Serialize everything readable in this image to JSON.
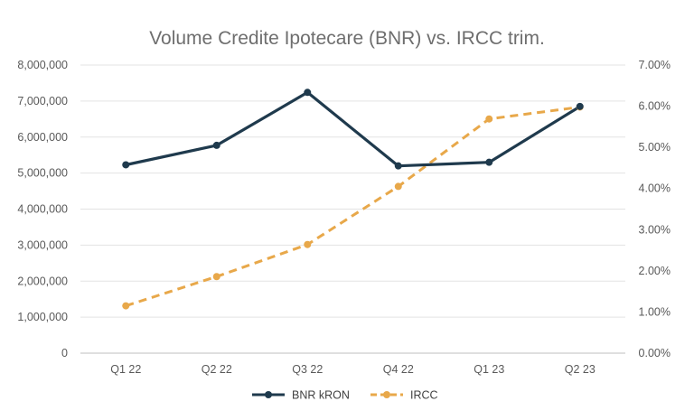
{
  "chart_data": {
    "type": "line",
    "title": "Volume Credite Ipotecare (BNR) vs. IRCC trim.",
    "categories": [
      "Q1 22",
      "Q2 22",
      "Q3 22",
      "Q4 22",
      "Q1 23",
      "Q2 23"
    ],
    "y_left": {
      "ylim": [
        0,
        8000000
      ],
      "ticks": [
        0,
        1000000,
        2000000,
        3000000,
        4000000,
        5000000,
        6000000,
        7000000,
        8000000
      ],
      "tick_labels": [
        "0",
        "1,000,000",
        "2,000,000",
        "3,000,000",
        "4,000,000",
        "5,000,000",
        "6,000,000",
        "7,000,000",
        "8,000,000"
      ]
    },
    "y_right": {
      "ylim": [
        0,
        0.07
      ],
      "ticks": [
        0,
        0.01,
        0.02,
        0.03,
        0.04,
        0.05,
        0.06,
        0.07
      ],
      "tick_labels": [
        "0.00%",
        "1.00%",
        "2.00%",
        "3.00%",
        "4.00%",
        "5.00%",
        "6.00%",
        "7.00%"
      ]
    },
    "series": [
      {
        "name": "BNR kRON",
        "axis": "left",
        "color": "#1f3a4d",
        "style": "solid",
        "values": [
          5230000,
          5770000,
          7240000,
          5200000,
          5300000,
          6850000
        ]
      },
      {
        "name": "IRCC",
        "axis": "right",
        "color": "#e8a84a",
        "style": "dashed",
        "values": [
          0.0115,
          0.0186,
          0.0264,
          0.0405,
          0.0569,
          0.0598
        ]
      }
    ],
    "grid": true,
    "legend_position": "bottom"
  }
}
